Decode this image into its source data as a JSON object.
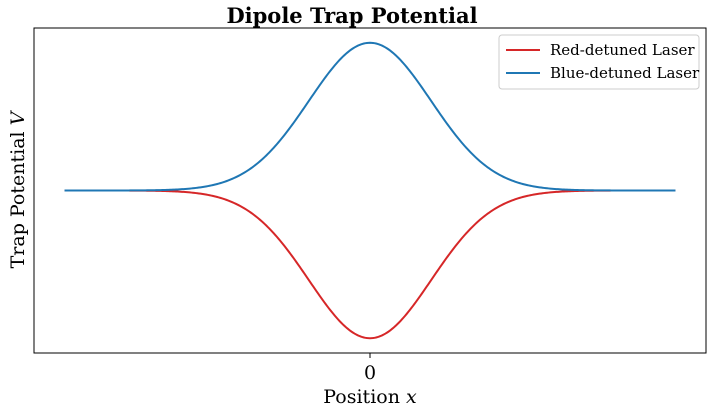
{
  "chart_data": {
    "type": "line",
    "title": "Dipole Trap Potential",
    "xlabel": {
      "text": "Position ",
      "var": "x"
    },
    "ylabel": {
      "text": "Trap Potential ",
      "var": "V"
    },
    "x_ticks": [
      {
        "value": 0,
        "label": "0"
      }
    ],
    "y_ticks": [],
    "xlim": [
      -5.5,
      5.5
    ],
    "ylim": [
      -1.1,
      1.1
    ],
    "grid": false,
    "legend_position": "top-right",
    "x": [
      -5,
      -4.5,
      -4,
      -3.5,
      -3,
      -2.5,
      -2,
      -1.5,
      -1,
      -0.5,
      0,
      0.5,
      1,
      1.5,
      2,
      2.5,
      3,
      3.5,
      4,
      4.5,
      5
    ],
    "series": [
      {
        "name": "Red-detuned Laser",
        "color": "#d62728",
        "values": [
          0,
          0,
          0,
          -0.002,
          -0.011,
          -0.044,
          -0.135,
          -0.325,
          -0.607,
          -0.882,
          -1,
          -0.882,
          -0.607,
          -0.325,
          -0.135,
          -0.044,
          -0.011,
          -0.002,
          0,
          0,
          0
        ]
      },
      {
        "name": "Blue-detuned Laser",
        "color": "#1f77b4",
        "values": [
          0,
          0,
          0,
          0.002,
          0.011,
          0.044,
          0.135,
          0.325,
          0.607,
          0.882,
          1,
          0.882,
          0.607,
          0.325,
          0.135,
          0.044,
          0.011,
          0.002,
          0,
          0,
          0
        ]
      }
    ]
  }
}
